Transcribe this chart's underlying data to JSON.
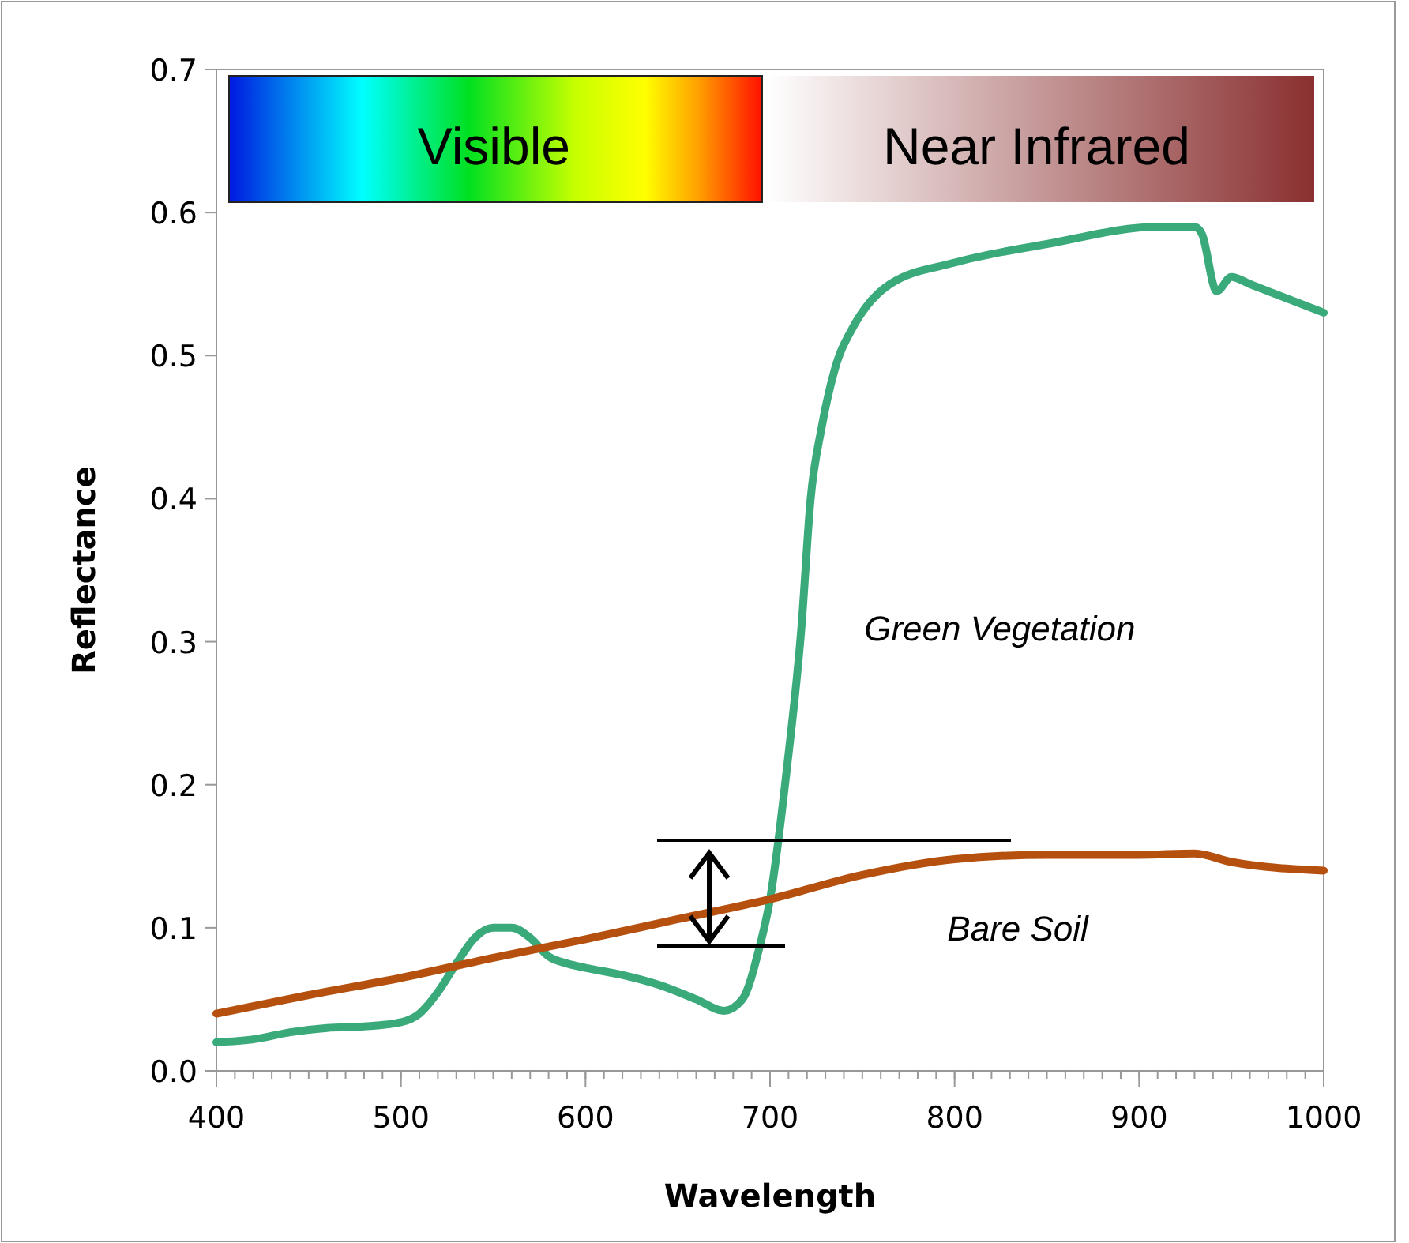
{
  "chart_data": {
    "type": "line",
    "xlabel": "Wavelength",
    "ylabel": "Reflectance",
    "xlim": [
      400,
      1000
    ],
    "xticks": [
      400,
      500,
      600,
      700,
      800,
      900,
      1000
    ],
    "ylim": [
      0,
      0.7
    ],
    "yticks": [
      {
        "value": 0,
        "label": "0.0"
      },
      0.1,
      0.2,
      0.3,
      0.4,
      0.5,
      0.6,
      0.7
    ],
    "grid": false,
    "line_style": "solid",
    "annotations": [
      "Visible",
      "Near Infrared"
    ],
    "series": [
      {
        "name": "Green Vegetation",
        "color": "#3aaa7a",
        "x": [
          400,
          420,
          440,
          460,
          480,
          500,
          510,
          520,
          530,
          540,
          550,
          560,
          570,
          580,
          590,
          600,
          620,
          640,
          660,
          675,
          685,
          694,
          700,
          709,
          717,
          722,
          728,
          735,
          745,
          752,
          765,
          800,
          850,
          910,
          930,
          934,
          942,
          950,
          960,
          980,
          1000
        ],
        "values": [
          0.02,
          0.022,
          0.027,
          0.03,
          0.031,
          0.034,
          0.04,
          0.055,
          0.075,
          0.093,
          0.1,
          0.1,
          0.093,
          0.08,
          0.075,
          0.072,
          0.067,
          0.06,
          0.05,
          0.042,
          0.05,
          0.085,
          0.12,
          0.21,
          0.31,
          0.4,
          0.45,
          0.49,
          0.52,
          0.534,
          0.55,
          0.565,
          0.578,
          0.59,
          0.59,
          0.585,
          0.545,
          0.555,
          0.55,
          0.54,
          0.53
        ]
      },
      {
        "name": "Bare Soil",
        "color": "#b5500f",
        "x": [
          400,
          450,
          500,
          550,
          600,
          650,
          700,
          750,
          800,
          850,
          900,
          930,
          950,
          1000
        ],
        "values": [
          0.04,
          0.053,
          0.065,
          0.079,
          0.092,
          0.106,
          0.12,
          0.137,
          0.148,
          0.151,
          0.151,
          0.152,
          0.146,
          0.14
        ]
      }
    ]
  }
}
